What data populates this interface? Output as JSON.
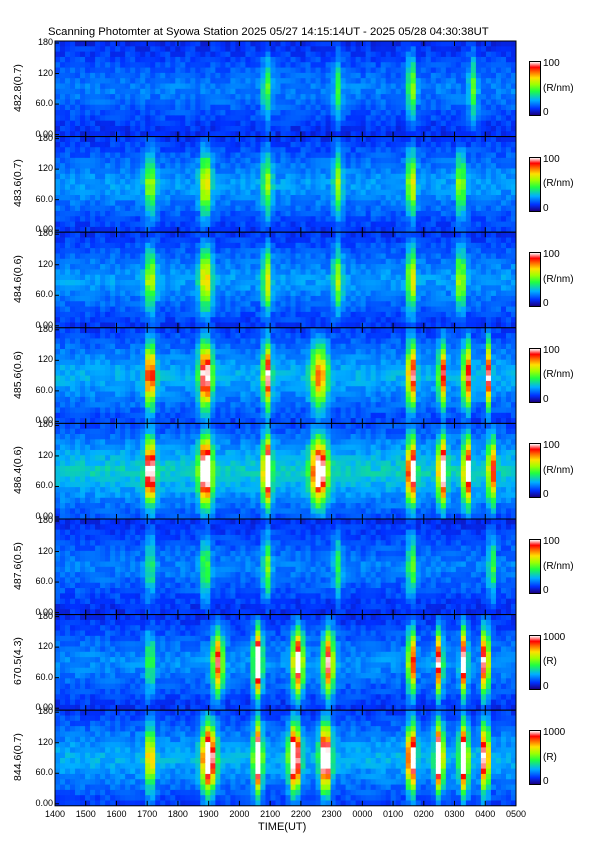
{
  "title": "Scanning Photomter at Syowa Station  2025 05/27 14:15:14UT - 2025 05/28 04:30:38UT",
  "xlabel": "TIME(UT)",
  "colors": {
    "low": "#1a0080",
    "high": "#ffffff"
  },
  "chart_data": {
    "type": "heatmap",
    "x_tick_labels": [
      "1400",
      "1500",
      "1600",
      "1700",
      "1800",
      "1900",
      "2000",
      "2100",
      "2200",
      "2300",
      "0000",
      "0100",
      "0200",
      "0300",
      "0400",
      "0500"
    ],
    "y_tick_labels": [
      "0.00",
      "60.0",
      "120",
      "180"
    ],
    "panels": [
      {
        "ylabel": "482.8(0.7)",
        "unit": "(R/nm)",
        "cmin": "0",
        "cmax": "100",
        "level": 0.18,
        "blobs": [
          [
            20.9,
            0.28,
            0.35
          ],
          [
            23.2,
            0.25,
            0.3
          ],
          [
            1.6,
            0.4,
            0.3
          ],
          [
            3.6,
            0.3,
            0.3
          ]
        ]
      },
      {
        "ylabel": "483.6(0.7)",
        "unit": "(R/nm)",
        "cmin": "0",
        "cmax": "100",
        "level": 0.22,
        "blobs": [
          [
            17.1,
            0.35,
            0.4
          ],
          [
            18.9,
            0.5,
            0.4
          ],
          [
            20.9,
            0.35,
            0.35
          ],
          [
            23.2,
            0.35,
            0.3
          ],
          [
            1.6,
            0.5,
            0.3
          ],
          [
            3.2,
            0.4,
            0.3
          ]
        ]
      },
      {
        "ylabel": "484.6(0.6)",
        "unit": "(R/nm)",
        "cmin": "0",
        "cmax": "100",
        "level": 0.22,
        "blobs": [
          [
            17.1,
            0.4,
            0.4
          ],
          [
            18.9,
            0.5,
            0.45
          ],
          [
            20.9,
            0.45,
            0.3
          ],
          [
            23.2,
            0.35,
            0.35
          ],
          [
            1.6,
            0.5,
            0.3
          ],
          [
            3.2,
            0.45,
            0.3
          ]
        ]
      },
      {
        "ylabel": "485.6(0.6)",
        "unit": "(R/nm)",
        "cmin": "0",
        "cmax": "100",
        "level": 0.25,
        "blobs": [
          [
            17.1,
            0.75,
            0.35
          ],
          [
            18.9,
            0.85,
            0.45
          ],
          [
            20.9,
            0.75,
            0.3
          ],
          [
            22.6,
            0.55,
            0.6
          ],
          [
            1.6,
            0.8,
            0.3
          ],
          [
            2.6,
            0.7,
            0.25
          ],
          [
            3.4,
            0.8,
            0.25
          ],
          [
            4.1,
            0.7,
            0.2
          ]
        ]
      },
      {
        "ylabel": "486.4(0.6)",
        "unit": "(R/nm)",
        "cmin": "0",
        "cmax": "100",
        "level": 0.3,
        "blobs": [
          [
            17.1,
            0.92,
            0.35
          ],
          [
            18.9,
            1.0,
            0.45
          ],
          [
            20.9,
            1.0,
            0.3
          ],
          [
            22.6,
            0.85,
            0.6
          ],
          [
            1.6,
            0.95,
            0.3
          ],
          [
            2.6,
            0.9,
            0.3
          ],
          [
            3.4,
            0.95,
            0.25
          ],
          [
            4.2,
            1.0,
            0.2
          ]
        ]
      },
      {
        "ylabel": "487.6(0.5)",
        "unit": "(R/nm)",
        "cmin": "0",
        "cmax": "100",
        "level": 0.18,
        "blobs": [
          [
            17.1,
            0.25,
            0.35
          ],
          [
            18.9,
            0.3,
            0.4
          ],
          [
            20.9,
            0.35,
            0.3
          ],
          [
            23.2,
            0.25,
            0.3
          ],
          [
            1.6,
            0.35,
            0.3
          ],
          [
            4.2,
            0.45,
            0.2
          ]
        ]
      },
      {
        "ylabel": "670.5(4.3)",
        "unit": "(R)",
        "cmin": "0",
        "cmax": "1000",
        "level": 0.2,
        "blobs": [
          [
            17.1,
            0.3,
            0.3
          ],
          [
            19.3,
            0.7,
            0.4
          ],
          [
            20.6,
            1.0,
            0.3
          ],
          [
            21.9,
            0.85,
            0.4
          ],
          [
            22.9,
            0.75,
            0.4
          ],
          [
            1.6,
            0.85,
            0.25
          ],
          [
            2.5,
            0.8,
            0.25
          ],
          [
            3.3,
            0.85,
            0.25
          ],
          [
            4.0,
            1.0,
            0.25
          ]
        ]
      },
      {
        "ylabel": "844.6(0.7)",
        "unit": "(R)",
        "cmin": "0",
        "cmax": "1000",
        "level": 0.25,
        "blobs": [
          [
            17.1,
            0.6,
            0.3
          ],
          [
            19.0,
            1.0,
            0.5
          ],
          [
            20.6,
            1.0,
            0.3
          ],
          [
            21.8,
            1.0,
            0.4
          ],
          [
            22.8,
            1.0,
            0.4
          ],
          [
            1.6,
            1.0,
            0.3
          ],
          [
            2.5,
            1.0,
            0.3
          ],
          [
            3.3,
            1.0,
            0.3
          ],
          [
            4.0,
            1.0,
            0.25
          ]
        ]
      }
    ]
  }
}
